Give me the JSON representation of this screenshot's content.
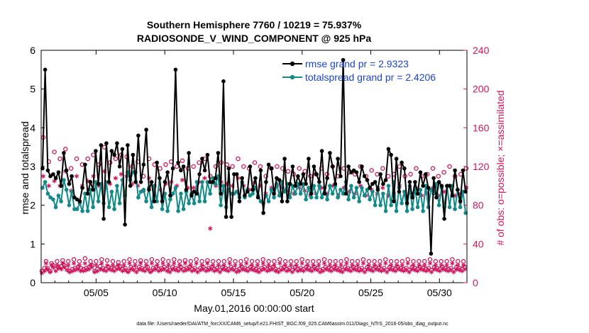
{
  "chart_data": {
    "type": "line",
    "title": "Southern Hemisphere 7760 / 10219 = 75.937%",
    "subtitle": "RADIOSONDE_V_WIND_COMPONENT @ 925 hPa",
    "xlabel": "May.01,2016 00:00:00 start",
    "ylabel": "rmse and totalspread",
    "y2label": "# of obs: o=possible; ×=assimilated",
    "footnote": "data file: /Users/raeder/DAI/ATM_forcXX/CAM6_setup/f.e21.FHIST_BGC.f09_025.CAM6assim.011/Diags_NTrS_2016-05/obs_diag_output.nc",
    "xlim": [
      1,
      32
    ],
    "ylim": [
      0,
      6
    ],
    "y2lim": [
      0,
      240
    ],
    "xticks": [
      5,
      10,
      15,
      20,
      25,
      30
    ],
    "xtick_labels": [
      "05/05",
      "05/10",
      "05/15",
      "05/20",
      "05/25",
      "05/30"
    ],
    "yticks": [
      0,
      1,
      2,
      3,
      4,
      5,
      6
    ],
    "y2ticks": [
      0,
      40,
      80,
      120,
      160,
      200,
      240
    ],
    "legend_position": "top-right",
    "colors": {
      "rmse": "#000000",
      "spread": "#138a8a",
      "obs": "#d0155c",
      "legend_text": "#1c45cf"
    },
    "series": [
      {
        "name": "rmse grand pr = 2.9323",
        "axis": "left",
        "values": [
          2.95,
          5.5,
          2.9,
          2.75,
          2.8,
          2.7,
          2.85,
          2.5,
          3.35,
          2.9,
          2.55,
          2.75,
          2.2,
          2.15,
          2.1,
          2.45,
          3.05,
          2.3,
          2.6,
          2.4,
          3.4,
          2.55,
          3.55,
          1.65,
          3.6,
          2.6,
          3.4,
          3.3,
          3.6,
          3.0,
          3.45,
          1.5,
          3.55,
          2.5,
          3.3,
          2.6,
          3.8,
          2.6,
          3.05,
          3.95,
          2.4,
          2.6,
          2.1,
          3.1,
          2.7,
          2.1,
          2.6,
          2.85,
          2.25,
          2.95,
          5.5,
          3.1,
          2.9,
          3.0,
          2.4,
          3.35,
          2.25,
          2.35,
          2.3,
          2.8,
          3.2,
          2.9,
          3.3,
          2.6,
          2.6,
          2.7,
          3.35,
          2.3,
          5.2,
          1.7,
          2.95,
          1.7,
          2.8,
          2.8,
          2.1,
          2.7,
          2.25,
          2.35,
          3.0,
          2.4,
          2.7,
          2.2,
          2.9,
          1.8,
          2.6,
          3.05,
          2.95,
          2.3,
          2.7,
          2.65,
          2.1,
          3.2,
          2.1,
          2.55,
          3.0,
          2.5,
          2.75,
          2.55,
          2.8,
          2.55,
          3.2,
          2.3,
          3.0,
          2.8,
          2.6,
          3.4,
          2.3,
          2.7,
          3.35,
          3.0,
          2.55,
          3.2,
          2.75,
          5.75,
          2.3,
          3.0,
          2.85,
          2.9,
          2.85,
          2.6,
          3.0,
          2.75,
          2.65,
          2.45,
          2.55,
          2.6,
          2.4,
          2.8,
          2.55,
          2.65,
          3.45,
          3.3,
          2.1,
          3.2,
          2.35,
          3.1,
          2.95,
          2.05,
          2.6,
          2.2,
          2.6,
          2.3,
          2.85,
          2.5,
          2.8,
          2.45,
          0.75,
          2.7,
          2.2,
          2.6,
          2.5,
          1.65,
          2.5,
          2.5,
          2.25,
          2.9,
          2.4,
          2.1,
          2.9,
          2.35
        ]
      },
      {
        "name": "totalspread grand pr = 2.4206",
        "axis": "left",
        "values": [
          2.45,
          2.6,
          2.3,
          2.2,
          2.15,
          1.95,
          2.25,
          2.1,
          2.65,
          2.4,
          2.0,
          2.35,
          1.9,
          1.9,
          2.05,
          1.85,
          2.3,
          1.85,
          2.4,
          1.95,
          2.6,
          2.1,
          2.55,
          2.05,
          2.6,
          1.95,
          2.35,
          1.9,
          2.5,
          2.05,
          2.65,
          2.25,
          2.85,
          2.65,
          2.85,
          2.85,
          2.2,
          2.35,
          2.4,
          2.1,
          2.45,
          1.95,
          2.5,
          2.1,
          2.7,
          1.9,
          2.3,
          1.85,
          2.15,
          2.3,
          2.45,
          1.85,
          2.3,
          1.9,
          2.35,
          2.05,
          2.3,
          2.05,
          2.6,
          2.1,
          2.6,
          2.1,
          2.6,
          2.3,
          2.7,
          2.55,
          2.75,
          2.0,
          2.5,
          1.95,
          2.4,
          2.3,
          2.3,
          2.35,
          2.2,
          2.6,
          2.2,
          2.4,
          2.25,
          2.3,
          2.45,
          2.25,
          2.1,
          2.05,
          2.25,
          2.1,
          2.4,
          2.2,
          2.55,
          2.25,
          2.6,
          2.35,
          2.55,
          2.2,
          2.5,
          2.3,
          2.55,
          2.3,
          2.55,
          2.15,
          2.45,
          2.2,
          2.5,
          2.2,
          2.5,
          2.2,
          2.45,
          2.15,
          2.5,
          2.3,
          2.5,
          2.2,
          2.4,
          2.3,
          2.6,
          2.15,
          2.5,
          2.2,
          2.45,
          2.1,
          2.45,
          2.25,
          2.4,
          2.15,
          2.35,
          2.0,
          2.45,
          2.0,
          2.3,
          1.85,
          2.5,
          2.0,
          2.6,
          1.85,
          2.45,
          2.05,
          2.35,
          1.85,
          2.5,
          1.9,
          2.45,
          1.95,
          2.4,
          1.85,
          2.5,
          1.95,
          2.4,
          2.3,
          2.55,
          2.0,
          2.45,
          1.95,
          2.5,
          1.95,
          2.5,
          1.9,
          2.4,
          1.95,
          2.35,
          1.8
        ]
      },
      {
        "name": "possible",
        "axis": "right",
        "marker": "o",
        "values": [
          12,
          150,
          15,
          22,
          15,
          125,
          12,
          20,
          18,
          135,
          14,
          22,
          16,
          128,
          17,
          23,
          18,
          138,
          15,
          22,
          12,
          118,
          14,
          24,
          15,
          128,
          16,
          22,
          15,
          122,
          14,
          25,
          15,
          128,
          16,
          22,
          18,
          132,
          12,
          22,
          14,
          122,
          17,
          24,
          15,
          140,
          14,
          23,
          16,
          124,
          15,
          22,
          14,
          128,
          16,
          21,
          17,
          132,
          14,
          22,
          15,
          130,
          12,
          24,
          16,
          120,
          15,
          22,
          13,
          125,
          16,
          23,
          15,
          110,
          14,
          22,
          16,
          128,
          12,
          24,
          15,
          122,
          16,
          22,
          14,
          118,
          15,
          24,
          16,
          122,
          14,
          22,
          13,
          125,
          16,
          24,
          15,
          120,
          14,
          22,
          16,
          126,
          14,
          23,
          15,
          118,
          16,
          22,
          14,
          120,
          15,
          24,
          13,
          124,
          15,
          22,
          16,
          128,
          14,
          23,
          15,
          110,
          16,
          22,
          14,
          120,
          15,
          22,
          13,
          124,
          16,
          22,
          15,
          122,
          14,
          24,
          16,
          120,
          15,
          22,
          13,
          128,
          14,
          22,
          16,
          120,
          15,
          24,
          14,
          118,
          16,
          22,
          15,
          124,
          14,
          22,
          13,
          120,
          15,
          24,
          16,
          110,
          14,
          22,
          15,
          118,
          16,
          22,
          14,
          120,
          13,
          24,
          15,
          118,
          16,
          22,
          14,
          115,
          15,
          22,
          13,
          112,
          16,
          22,
          14,
          118,
          15,
          24,
          14,
          115,
          16,
          22,
          15,
          110,
          14,
          22,
          16,
          112,
          15,
          22,
          13,
          118,
          14,
          24,
          16,
          112,
          15,
          22,
          14,
          120,
          16,
          22,
          15,
          110,
          14,
          22,
          13,
          118,
          16,
          24,
          15,
          114,
          14,
          22,
          16,
          112,
          15,
          22,
          14,
          120,
          15,
          24,
          13,
          110,
          16,
          22,
          15,
          116,
          14,
          22,
          16,
          112,
          15,
          22,
          14,
          118,
          15,
          24,
          13,
          110,
          16,
          22,
          15,
          112,
          14,
          22,
          16,
          120,
          15,
          22,
          14,
          110,
          15,
          24,
          13,
          112,
          16,
          22,
          15,
          118,
          14,
          22,
          16,
          110,
          15,
          22,
          14,
          112,
          15,
          24,
          13,
          118,
          16,
          22,
          15,
          110,
          14,
          22,
          16,
          114,
          15,
          22,
          14,
          120,
          15,
          24,
          13,
          110,
          16,
          22,
          15,
          112,
          14,
          22,
          16,
          118
        ]
      },
      {
        "name": "assimilated",
        "axis": "right",
        "marker": "x",
        "values": [
          10,
          110,
          12,
          20,
          14,
          100,
          11,
          18,
          16,
          105,
          12,
          18,
          15,
          100,
          14,
          20,
          16,
          115,
          13,
          18,
          11,
          95,
          12,
          20,
          13,
          110,
          14,
          18,
          12,
          100,
          12,
          20,
          13,
          105,
          14,
          18,
          16,
          110,
          11,
          18,
          12,
          100,
          14,
          20,
          13,
          115,
          12,
          18,
          14,
          102,
          13,
          18,
          12,
          108,
          14,
          18,
          14,
          112,
          12,
          18,
          13,
          110,
          11,
          20,
          14,
          102,
          13,
          18,
          11,
          100,
          14,
          20,
          13,
          95,
          12,
          18,
          14,
          108,
          11,
          20,
          13,
          100,
          14,
          18,
          12,
          96,
          13,
          20,
          14,
          102,
          12,
          18,
          11,
          104,
          14,
          20,
          13,
          100,
          12,
          18,
          14,
          106,
          12,
          20,
          13,
          98,
          14,
          18,
          12,
          98,
          13,
          20,
          11,
          104,
          13,
          18,
          14,
          108,
          12,
          20,
          13,
          56,
          14,
          18,
          12,
          100,
          13,
          18,
          11,
          104,
          14,
          18,
          13,
          102,
          12,
          20,
          14,
          100,
          13,
          18,
          11,
          108,
          12,
          18,
          14,
          100,
          13,
          20,
          12,
          96,
          14,
          18,
          13,
          104,
          12,
          18,
          11,
          100,
          13,
          20,
          14,
          92,
          12,
          18,
          13,
          98,
          14,
          18,
          12,
          100,
          11,
          20,
          13,
          98,
          14,
          18,
          12,
          95,
          13,
          18,
          11,
          92,
          14,
          18,
          12,
          98,
          13,
          20,
          12,
          95,
          14,
          18,
          13,
          90,
          12,
          18,
          14,
          92,
          13,
          18,
          11,
          98,
          12,
          20,
          14,
          92,
          13,
          18,
          12,
          100,
          14,
          18,
          13,
          90,
          12,
          18,
          11,
          98,
          14,
          20,
          13,
          94,
          12,
          18,
          14,
          92,
          13,
          18,
          12,
          100,
          13,
          20,
          11,
          90,
          14,
          18,
          13,
          96,
          12,
          18,
          14,
          92,
          13,
          18,
          12,
          98,
          13,
          20,
          11,
          90,
          14,
          18,
          13,
          92,
          12,
          18,
          14,
          100,
          13,
          18,
          12,
          90,
          13,
          20,
          11,
          92,
          14,
          18,
          13,
          98,
          12,
          18,
          14,
          90,
          13,
          18,
          12,
          92,
          13,
          20,
          11,
          98,
          14,
          18,
          13,
          90,
          12,
          18,
          14,
          94,
          13,
          18,
          12,
          100,
          13,
          20,
          11,
          90,
          14,
          18,
          13,
          92,
          12,
          18,
          14,
          98
        ]
      }
    ]
  }
}
